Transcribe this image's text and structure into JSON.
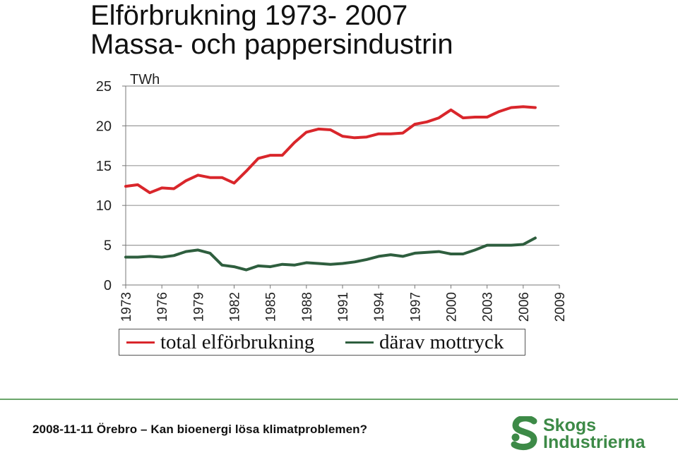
{
  "title": {
    "line1": "Elförbrukning 1973- 2007",
    "line2": "Massa- och pappersindustrin"
  },
  "chart_data": {
    "type": "line",
    "ylabel": "TWh",
    "ylim": [
      0,
      25
    ],
    "xlim": [
      1973,
      2009
    ],
    "yticks": [
      "0",
      "5",
      "10",
      "15",
      "20",
      "25"
    ],
    "xticks": [
      "1973",
      "1976",
      "1979",
      "1982",
      "1985",
      "1988",
      "1991",
      "1994",
      "1997",
      "2000",
      "2003",
      "2006",
      "2009"
    ],
    "grid": "horizontal",
    "legend_position": "bottom",
    "x": [
      1973,
      1974,
      1975,
      1976,
      1977,
      1978,
      1979,
      1980,
      1981,
      1982,
      1983,
      1984,
      1985,
      1986,
      1987,
      1988,
      1989,
      1990,
      1991,
      1992,
      1993,
      1994,
      1995,
      1996,
      1997,
      1998,
      1999,
      2000,
      2001,
      2002,
      2003,
      2004,
      2005,
      2006,
      2007
    ],
    "series": [
      {
        "name": "total elförbrukning",
        "color": "#d9262b",
        "values": [
          12.4,
          12.6,
          11.6,
          12.2,
          12.1,
          13.1,
          13.8,
          13.5,
          13.5,
          12.8,
          14.3,
          15.9,
          16.3,
          16.3,
          17.9,
          19.2,
          19.6,
          19.5,
          18.7,
          18.5,
          18.6,
          19.0,
          19.0,
          19.1,
          20.2,
          20.5,
          21.0,
          22.0,
          21.0,
          21.1,
          21.1,
          21.8,
          22.3,
          22.4,
          22.3
        ]
      },
      {
        "name": "därav mottryck",
        "color": "#2e5e3e",
        "values": [
          3.5,
          3.5,
          3.6,
          3.5,
          3.7,
          4.2,
          4.4,
          4.0,
          2.5,
          2.3,
          1.9,
          2.4,
          2.3,
          2.6,
          2.5,
          2.8,
          2.7,
          2.6,
          2.7,
          2.9,
          3.2,
          3.6,
          3.8,
          3.6,
          4.0,
          4.1,
          4.2,
          3.9,
          3.9,
          4.4,
          5.0,
          5.0,
          5.0,
          5.1,
          5.9
        ]
      }
    ]
  },
  "footer": {
    "text": "2008-11-11 Örebro – Kan bioenergi lösa klimatproblemen?"
  },
  "logo": {
    "icon": "skogsindustrierna-s-logo",
    "word1": "Skogs",
    "word2": "Industrierna",
    "color": "#3d8a47"
  }
}
